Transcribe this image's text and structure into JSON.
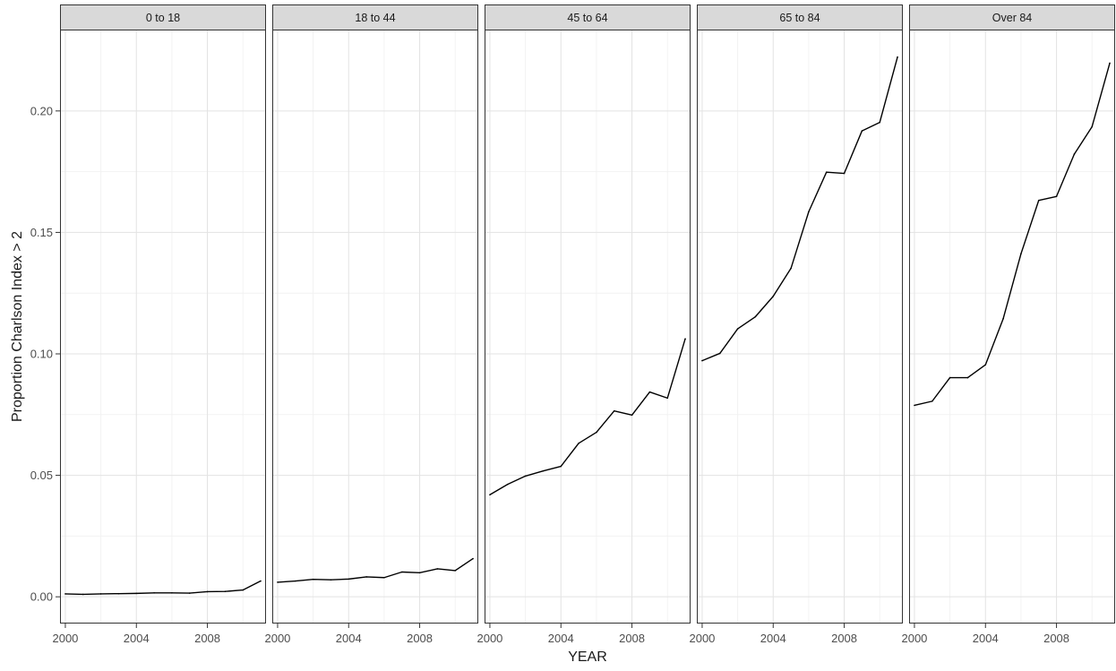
{
  "chart_data": {
    "type": "line",
    "facet_label": "",
    "xlabel": "YEAR",
    "ylabel": "Proportion Charlson Index > 2",
    "xlim": [
      1999.7,
      2011.3
    ],
    "ylim": [
      -0.011,
      0.2335
    ],
    "x_ticks": [
      2000,
      2004,
      2008
    ],
    "x_tick_labels": [
      "2000",
      "2004",
      "2008"
    ],
    "y_ticks": [
      0.0,
      0.05,
      0.1,
      0.15,
      0.2
    ],
    "y_tick_labels": [
      "0.00",
      "0.05",
      "0.10",
      "0.15",
      "0.20"
    ],
    "grid": true,
    "line_color": "#000000",
    "strip_color": "#d9d9d9",
    "x": [
      2000,
      2001,
      2002,
      2003,
      2004,
      2005,
      2006,
      2007,
      2008,
      2009,
      2010,
      2011
    ],
    "panels": [
      {
        "label": "0 to 18",
        "values": [
          0.0012,
          0.001,
          0.0012,
          0.0013,
          0.0014,
          0.0016,
          0.0016,
          0.0015,
          0.0021,
          0.0022,
          0.0028,
          0.0065
        ]
      },
      {
        "label": "18 to 44",
        "values": [
          0.006,
          0.0065,
          0.0072,
          0.007,
          0.0073,
          0.0082,
          0.0079,
          0.0102,
          0.0099,
          0.0115,
          0.0108,
          0.0157
        ]
      },
      {
        "label": "45 to 64",
        "values": [
          0.042,
          0.0463,
          0.0497,
          0.0518,
          0.0537,
          0.0632,
          0.0677,
          0.0765,
          0.0748,
          0.0843,
          0.0818,
          0.1062
        ]
      },
      {
        "label": "65 to 84",
        "values": [
          0.0972,
          0.1002,
          0.1103,
          0.1153,
          0.1237,
          0.1352,
          0.1585,
          0.1748,
          0.1743,
          0.1918,
          0.1953,
          0.2222
        ]
      },
      {
        "label": "Over 84",
        "values": [
          0.0788,
          0.0805,
          0.0902,
          0.0902,
          0.0955,
          0.1145,
          0.1412,
          0.1632,
          0.1648,
          0.1822,
          0.1935,
          0.2197
        ]
      }
    ]
  }
}
